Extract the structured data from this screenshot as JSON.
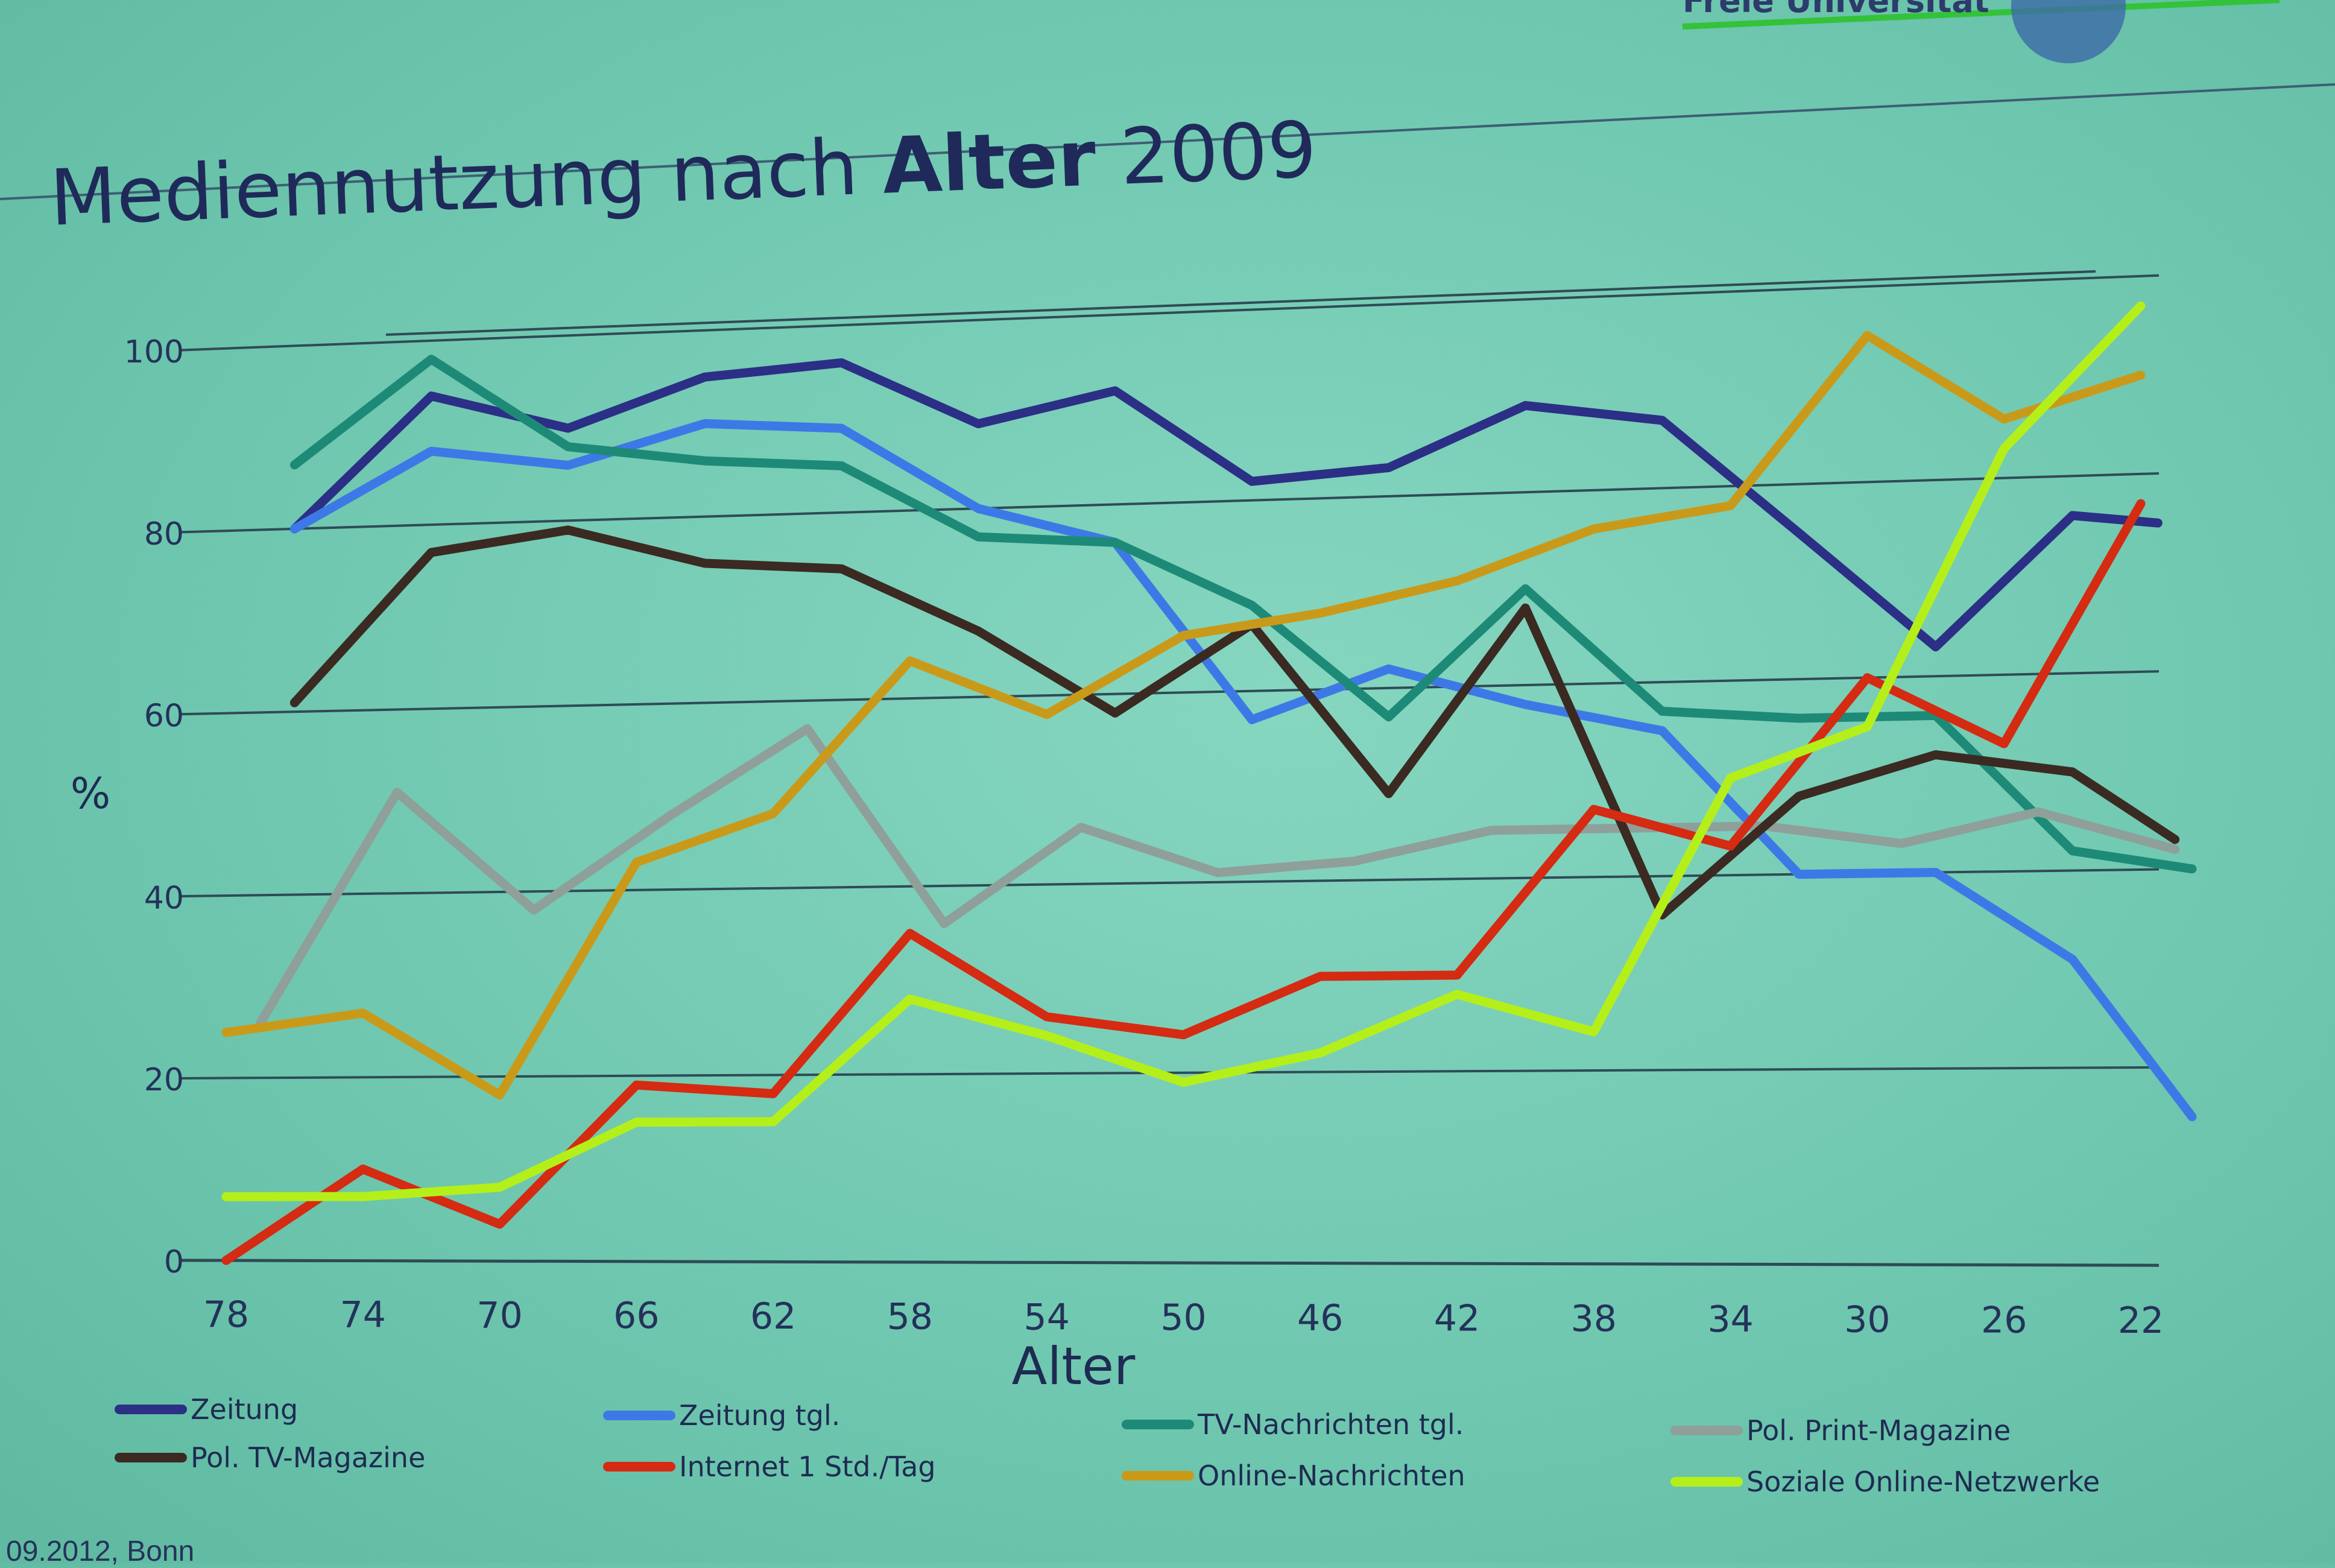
{
  "slide": {
    "title_regular": "Mediennutzung nach ",
    "title_bold": "Alter",
    "title_year": " 2009",
    "brand": "Freie Universität",
    "footer": "09.2012, Bonn"
  },
  "chart_data": {
    "type": "line",
    "title": "Mediennutzung nach Alter 2009",
    "xlabel": "Alter",
    "ylabel": "%",
    "ylim": [
      0,
      100
    ],
    "xlim": [
      78,
      22
    ],
    "x_reversed": true,
    "grid": "horizontal",
    "legend_position": "bottom",
    "x_ticks": [
      78,
      74,
      70,
      66,
      62,
      58,
      54,
      50,
      46,
      42,
      38,
      34,
      30,
      26,
      22
    ],
    "y_ticks": [
      0,
      20,
      40,
      60,
      80,
      100
    ],
    "series": [
      {
        "name": "Zeitung",
        "color": "#2c2f86",
        "x": [
          76,
          72,
          68,
          64,
          60,
          56,
          52,
          48,
          44,
          40,
          36,
          32,
          28,
          24,
          21.5
        ],
        "y": [
          80,
          94,
          90,
          95,
          96,
          89,
          92,
          82,
          83,
          89,
          87,
          75,
          63,
          76,
          75
        ]
      },
      {
        "name": "Zeitung tgl.",
        "color": "#3d79e6",
        "x": [
          76,
          72,
          68,
          64,
          60,
          56,
          52,
          48,
          44,
          40,
          36,
          32,
          28,
          24,
          20.5
        ],
        "y": [
          80,
          88,
          86,
          90,
          89,
          80,
          76,
          57,
          62,
          58,
          55,
          40,
          40,
          31,
          15
        ]
      },
      {
        "name": "TV-Nachrichten tgl.",
        "color": "#1d8a77",
        "x": [
          76,
          72,
          68,
          64,
          60,
          56,
          52,
          48,
          44,
          40,
          36,
          32,
          28,
          24,
          20.5
        ],
        "y": [
          87,
          98,
          88,
          86,
          85,
          77,
          76,
          69,
          57,
          70,
          57,
          56,
          56,
          42,
          40
        ]
      },
      {
        "name": "Pol. Print-Magazine",
        "color": "#8f9f9a",
        "x": [
          77,
          73,
          69,
          65,
          61,
          57,
          53,
          49,
          45,
          41,
          37,
          33,
          29,
          25,
          21
        ],
        "y": [
          26,
          51,
          38,
          48,
          57,
          36,
          46,
          41,
          42,
          45,
          45,
          45,
          43,
          46,
          42
        ]
      },
      {
        "name": "Pol. TV-Magazine",
        "color": "#3b2a22",
        "x": [
          76,
          72,
          68,
          64,
          60,
          56,
          52,
          48,
          44,
          40,
          36,
          32,
          28,
          24,
          21
        ],
        "y": [
          61,
          77,
          79,
          75,
          74,
          67,
          58,
          67,
          49,
          68,
          36,
          48,
          52,
          50,
          43
        ]
      },
      {
        "name": "Internet 1 Std./Tag",
        "color": "#d42b12",
        "x": [
          78,
          74,
          70,
          66,
          62,
          58,
          54,
          50,
          46,
          42,
          38,
          34,
          30,
          26,
          22
        ],
        "y": [
          0,
          10,
          4,
          19,
          18,
          35,
          26,
          24,
          30,
          30,
          47,
          43,
          60,
          53,
          77
        ]
      },
      {
        "name": "Online-Nachrichten",
        "color": "#c99a1a",
        "x": [
          78,
          74,
          70,
          66,
          62,
          58,
          54,
          50,
          46,
          42,
          38,
          34,
          30,
          26,
          22
        ],
        "y": [
          25,
          27,
          18,
          43,
          48,
          64,
          58,
          66,
          68,
          71,
          76,
          78,
          95,
          86,
          90
        ]
      },
      {
        "name": "Soziale Online-Netzwerke",
        "color": "#b5ef1a",
        "x": [
          78,
          74,
          70,
          66,
          62,
          58,
          54,
          50,
          46,
          42,
          38,
          34,
          30,
          26,
          22
        ],
        "y": [
          7,
          7,
          8,
          15,
          15,
          28,
          24,
          19,
          22,
          28,
          24,
          50,
          55,
          83,
          97
        ]
      }
    ]
  }
}
